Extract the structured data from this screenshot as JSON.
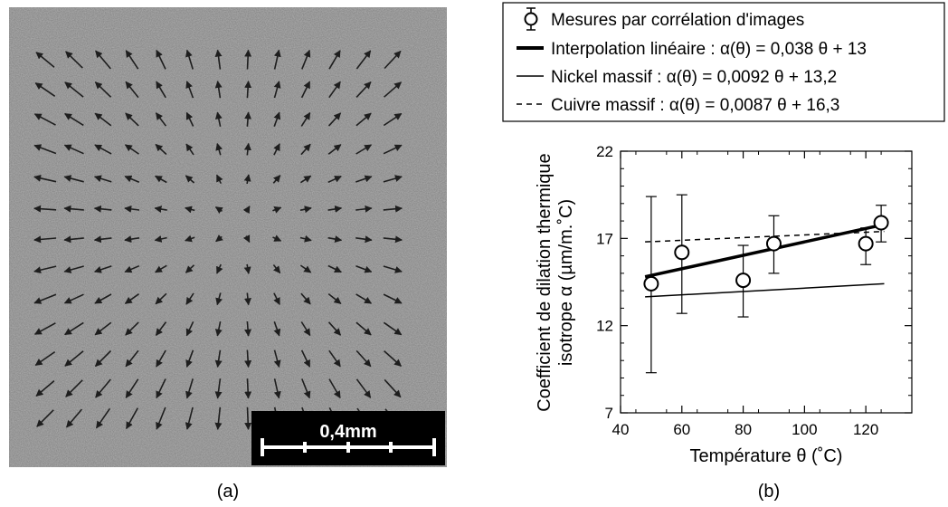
{
  "panel_a": {
    "caption": "(a)",
    "scale_bar_label": "0,4mm",
    "colors": {
      "background": "#8a8a8a",
      "arrow": "#1e1e1e",
      "scale_box": "#000000",
      "scale_ink": "#ffffff"
    }
  },
  "panel_b": {
    "caption": "(b)"
  },
  "chart_data": {
    "type": "scatter",
    "title": "",
    "xlabel": "Température θ (˚C)",
    "ylabel": [
      "Coefficient de dilation thermique",
      "isotrope α (µm/m.˚C)"
    ],
    "xlim": [
      40,
      135
    ],
    "ylim": [
      7,
      22
    ],
    "x_ticks": [
      "40",
      "60",
      "80",
      "100",
      "120"
    ],
    "y_ticks": [
      "7",
      "12",
      "17",
      "22"
    ],
    "grid": false,
    "legend_position": "top",
    "legend": [
      "Mesures par corrélation d'images",
      "Interpolation linéaire : α(θ) = 0,038 θ + 13",
      "Nickel massif : α(θ) = 0,0092 θ + 13,2",
      "Cuivre massif : α(θ) = 0,0087 θ + 16,3"
    ],
    "series": [
      {
        "name": "Mesures par corrélation d'images",
        "style": "circle-errorbar",
        "points": [
          {
            "x": 50,
            "y": 14.4,
            "yerr_low": 9.3,
            "yerr_high": 19.4
          },
          {
            "x": 60,
            "y": 16.2,
            "yerr_low": 12.7,
            "yerr_high": 19.5
          },
          {
            "x": 80,
            "y": 14.6,
            "yerr_low": 12.5,
            "yerr_high": 16.6
          },
          {
            "x": 90,
            "y": 16.7,
            "yerr_low": 15.0,
            "yerr_high": 18.3
          },
          {
            "x": 120,
            "y": 16.7,
            "yerr_low": 15.5,
            "yerr_high": 17.6
          },
          {
            "x": 125,
            "y": 17.9,
            "yerr_low": 16.8,
            "yerr_high": 18.9
          }
        ]
      },
      {
        "name": "Interpolation linéaire : α(θ) = 0,038 θ + 13",
        "style": "thick",
        "x": [
          48,
          126
        ],
        "y": [
          14.8,
          17.8
        ]
      },
      {
        "name": "Nickel massif : α(θ) = 0,0092 θ + 13,2",
        "style": "thin",
        "x": [
          48,
          126
        ],
        "y": [
          13.65,
          14.4
        ]
      },
      {
        "name": "Cuivre massif : α(θ) = 0,0087 θ + 16,3",
        "style": "dashed",
        "x": [
          48,
          126
        ],
        "y": [
          16.8,
          17.4
        ]
      }
    ]
  }
}
